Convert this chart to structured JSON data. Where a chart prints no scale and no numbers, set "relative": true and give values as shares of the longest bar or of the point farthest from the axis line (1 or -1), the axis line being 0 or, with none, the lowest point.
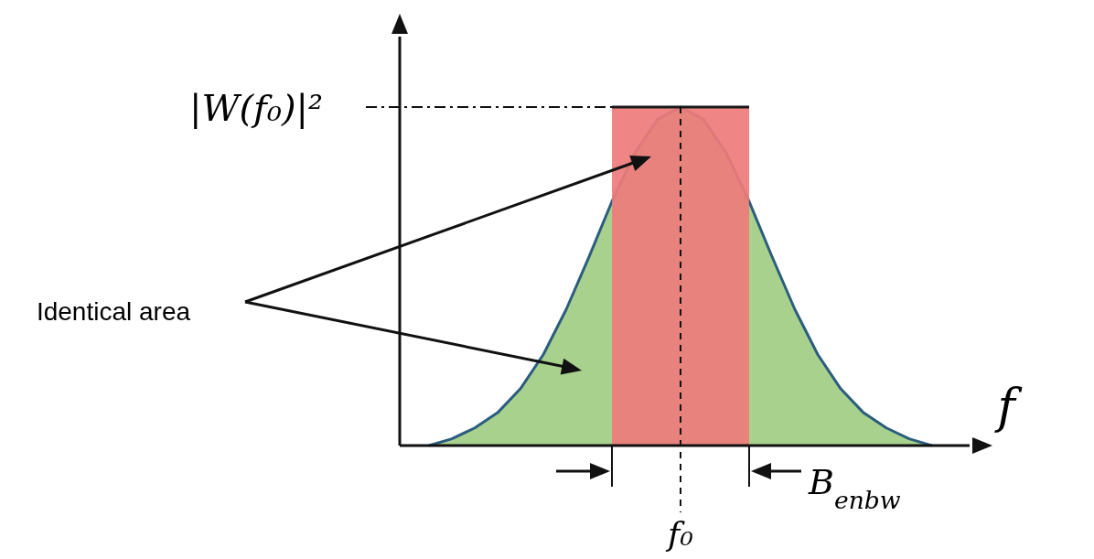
{
  "chart_data": {
    "type": "area",
    "relative": true,
    "xlabel": "f",
    "categories": [
      null,
      null,
      null,
      null,
      null,
      null,
      null,
      null,
      null,
      null,
      null,
      null,
      null,
      null,
      null,
      null,
      null,
      null,
      null,
      null,
      null,
      null,
      null,
      null,
      null
    ],
    "series": [
      {
        "type": "area",
        "color": "#a9d18e",
        "values": [
          null,
          0,
          0.02,
          0.052,
          0.097,
          0.168,
          0.269,
          0.402,
          0.558,
          0.721,
          0.864,
          0.964,
          1,
          0.964,
          0.864,
          0.721,
          0.558,
          0.402,
          0.269,
          0.168,
          0.097,
          0.052,
          0.02,
          0,
          null
        ]
      },
      {
        "type": "area",
        "color": "#ee7b7b",
        "values": [
          null,
          null,
          null,
          null,
          null,
          null,
          null,
          null,
          null,
          1,
          1,
          1,
          1,
          1,
          1,
          1,
          null,
          null,
          null,
          null,
          null,
          null,
          null,
          null,
          null
        ]
      }
    ],
    "ref_lines": [
      {
        "axis": "y",
        "value": 1,
        "label": "|W(f₀)|²",
        "line_style": "dashdot"
      },
      {
        "axis": "x",
        "label": "f₀",
        "line_style": "dashed"
      }
    ],
    "annotations": [
      "Identical area",
      "B$_{enbw}$"
    ]
  }
}
